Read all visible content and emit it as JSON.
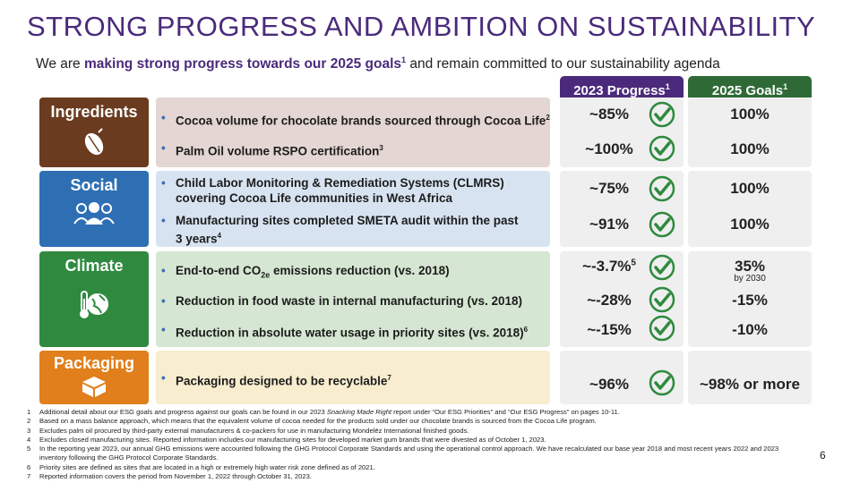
{
  "title": "STRONG PROGRESS AND AMBITION ON SUSTAINABILITY",
  "subtitle": {
    "prefix": "We are ",
    "highlight": "making strong progress towards our 2025 goals",
    "highlight_sup": "1",
    "suffix": " and remain committed to our sustainability agenda"
  },
  "columns": {
    "progress": {
      "label": "2023 Progress",
      "sup": "1"
    },
    "goals": {
      "label": "2025 Goals",
      "sup": "1"
    }
  },
  "colors": {
    "ingredients": "#6b3b1f",
    "social": "#2e6fb3",
    "climate": "#2f8a3f",
    "packaging": "#e07f1c",
    "check": "#2f8a3f",
    "title": "#4b2a7b"
  },
  "sections": {
    "ingredients": {
      "label": "Ingredients",
      "icon": "cocoa-pod-icon",
      "items": [
        {
          "text": "Cocoa volume for chocolate brands sourced through Cocoa Life",
          "sup": "2",
          "progress": "~85%",
          "goal": "100%"
        },
        {
          "text": "Palm Oil volume RSPO certification",
          "sup": "3",
          "progress": "~100%",
          "goal": "100%"
        }
      ]
    },
    "social": {
      "label": "Social",
      "icon": "people-icon",
      "items": [
        {
          "text": "Child Labor Monitoring & Remediation Systems (CLMRS) covering Cocoa Life communities in West Africa",
          "sup": "",
          "progress": "~75%",
          "goal": "100%"
        },
        {
          "text": "Manufacturing sites completed SMETA audit within the past 3 years",
          "sup": "4",
          "progress": "~91%",
          "goal": "100%"
        }
      ]
    },
    "climate": {
      "label": "Climate",
      "icon": "earth-thermometer-icon",
      "items": [
        {
          "text_pre": "End-to-end CO",
          "text_sub": "2e",
          "text_post": " emissions reduction (vs. 2018)",
          "progress": "~-3.7%",
          "progress_sup": "5",
          "goal": "35%",
          "goal_note": "by 2030"
        },
        {
          "text": "Reduction in food waste in internal manufacturing (vs. 2018)",
          "sup": "",
          "progress": "~-28%",
          "goal": "-15%"
        },
        {
          "text": "Reduction in absolute water usage in priority sites (vs. 2018)",
          "sup": "6",
          "progress": "~-15%",
          "goal": "-10%"
        }
      ]
    },
    "packaging": {
      "label": "Packaging",
      "icon": "box-icon",
      "items": [
        {
          "text": "Packaging designed to be recyclable",
          "sup": "7",
          "progress": "~96%",
          "goal": "~98% or more"
        }
      ]
    }
  },
  "footnotes": [
    {
      "num": "1",
      "pre": "Additional detail about our ESG goals and progress against our goals can be found in our 2023 ",
      "italic": "Snacking Made Right",
      "post": " report under “Our ESG Priorities” and “Our ESG Progress” on pages 10-11."
    },
    {
      "num": "2",
      "text": "Based on a mass balance approach, which means that the equivalent volume of cocoa needed for the products sold under our chocolate brands is sourced from the Cocoa Life program."
    },
    {
      "num": "3",
      "text": "Excludes palm oil procured by third-party external manufacturers & co-packers for use in manufacturing Mondelēz International finished goods."
    },
    {
      "num": "4",
      "text": "Excludes closed manufacturing sites. Reported information includes our manufacturing sites for developed market gum brands that were divested as of October 1, 2023."
    },
    {
      "num": "5",
      "text": "In the reporting year 2023, our annual GHG emissions were accounted following the GHG Protocol Corporate Standards and using the operational control approach. We have recalculated our base year 2018 and most recent years 2022 and 2023 inventory following the GHG Protocol Corporate Standards."
    },
    {
      "num": "6",
      "text": "Priority sites are defined as sites that are located in a high or extremely high water risk zone defined as of 2021."
    },
    {
      "num": "7",
      "text": "Reported information covers the period from November 1, 2022 through October 31, 2023."
    }
  ],
  "page_number": "6"
}
